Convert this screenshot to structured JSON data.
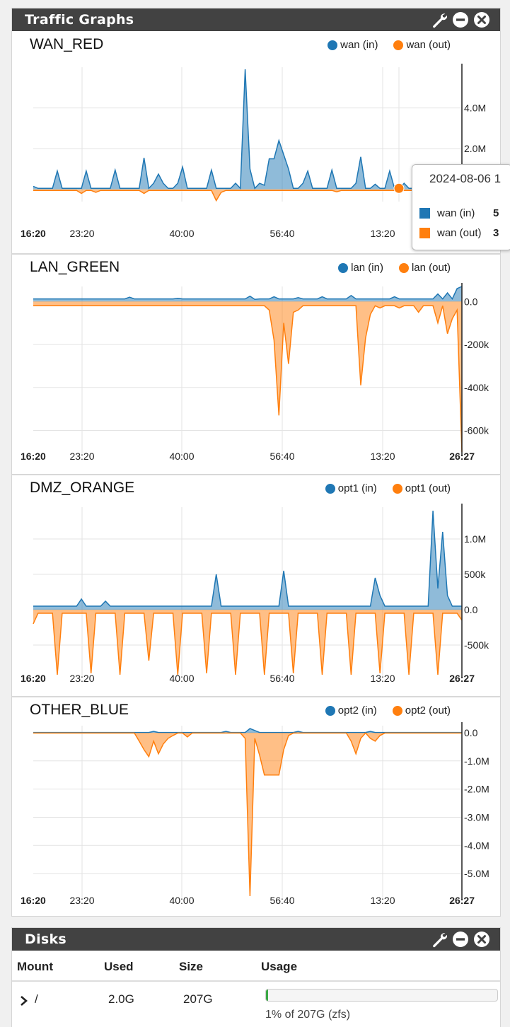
{
  "traffic_panel": {
    "title": "Traffic Graphs",
    "icons": [
      "wrench-icon",
      "minus-circle-icon",
      "close-circle-icon"
    ]
  },
  "colors": {
    "in": "#1f77b4",
    "out": "#ff7f0e",
    "header": "#424242"
  },
  "chart_data": [
    {
      "type": "area",
      "name": "WAN_RED",
      "x_ticks": [
        "16:20",
        "23:20",
        "40:00",
        "56:40",
        "13:20",
        ""
      ],
      "y_ticks": [
        "4.0M",
        "2.0M"
      ],
      "ylim": [
        -0.6,
        6.0
      ],
      "legend": [
        "wan (in)",
        "wan (out)"
      ],
      "series": [
        {
          "name": "wan (in)",
          "values": [
            0.15,
            0.05,
            0.05,
            0.05,
            0.9,
            0.05,
            0.05,
            0.05,
            0.05,
            0.05,
            0.05,
            0.05,
            0.05,
            0.05,
            0.05,
            0.05,
            0.05,
            0.95,
            0.05,
            0.05,
            0.05,
            0.05,
            0.05,
            0.05,
            0.05,
            0.05,
            0.05,
            0.05,
            0.05,
            0.05,
            0.05,
            0.05,
            0.05,
            0.05,
            0.05,
            0.05,
            0.05,
            0.05,
            0.05,
            0.05,
            0.05,
            0.05,
            0.05,
            0.05,
            0.05,
            0.05,
            0.05,
            0.05,
            0.05,
            0.05,
            0.05,
            0.05,
            0.05,
            0.05,
            0.05,
            0.05,
            0.05,
            0.05,
            0.05,
            0.05,
            0.95,
            0.05,
            0.05,
            0.05,
            0.05,
            0.05,
            0.05,
            0.05,
            0.05,
            0.05,
            0.05,
            0.05,
            0.05,
            0.05,
            0.05,
            0.05,
            0.05,
            0.05,
            0.05,
            0.05,
            0.05,
            0.05,
            0.05,
            0.05,
            0.05,
            0.05,
            0.05,
            0.05,
            0.05,
            0.05,
            0.05,
            0.05,
            0.05,
            0.05,
            0.05,
            0.05,
            0.05,
            0.05,
            0.05,
            0.05,
            0.05,
            0.05,
            0.05,
            0.05,
            0.05,
            0.05,
            0.05,
            0.05,
            0.05,
            0.05,
            0.05,
            0.05,
            0.05,
            0.05,
            0.05,
            0.05,
            0.05,
            0.05,
            0.05,
            0.05,
            0.05,
            0.05,
            0.05,
            0.05,
            0.05,
            0.05,
            0.05,
            0.05,
            0.05,
            0.05,
            0.05,
            0.05,
            0.05,
            0.05,
            0.05,
            0.05,
            0.05,
            0.05,
            0.05,
            0.05,
            0.05,
            0.05,
            0.05,
            0.05,
            0.05,
            0.05,
            0.05,
            0.05,
            0.05,
            0.05,
            0.05,
            0.05,
            0.05,
            0.05,
            0.05,
            0.05
          ]
        },
        {
          "name": "wan (out)",
          "values": []
        }
      ]
    },
    {
      "type": "area",
      "name": "LAN_GREEN",
      "x_ticks": [
        "16:20",
        "23:20",
        "40:00",
        "56:40",
        "13:20",
        "26:27"
      ],
      "y_ticks": [
        "0.0",
        "-200k",
        "-400k",
        "-600k"
      ],
      "ylim": [
        -720,
        70
      ],
      "legend": [
        "lan (in)",
        "lan (out)"
      ]
    },
    {
      "type": "area",
      "name": "DMZ_ORANGE",
      "x_ticks": [
        "16:20",
        "23:20",
        "40:00",
        "56:40",
        "13:20",
        "26:27"
      ],
      "y_ticks": [
        "1.0M",
        "500k",
        "0.0",
        "-500k"
      ],
      "ylim": [
        -0.95,
        1.45
      ],
      "legend": [
        "opt1 (in)",
        "opt1 (out)"
      ]
    },
    {
      "type": "area",
      "name": "OTHER_BLUE",
      "x_ticks": [
        "16:20",
        "23:20",
        "40:00",
        "56:40",
        "13:20",
        "26:27"
      ],
      "y_ticks": [
        "0.0",
        "-1.0M",
        "-2.0M",
        "-3.0M",
        "-4.0M",
        "-5.0M"
      ],
      "ylim": [
        -5.9,
        0.25
      ],
      "legend": [
        "opt2 (in)",
        "opt2 (out)"
      ]
    }
  ],
  "tooltip": {
    "date": "2024-08-06 1",
    "rows": [
      {
        "label": "wan (in)",
        "value": "5"
      },
      {
        "label": "wan (out)",
        "value": "3"
      }
    ]
  },
  "disks_panel": {
    "title": "Disks",
    "columns": [
      "Mount",
      "Used",
      "Size",
      "Usage"
    ],
    "rows": [
      {
        "mount": "/",
        "used": "2.0G",
        "size": "207G",
        "usage_percent": 1,
        "usage_text": "1% of 207G (zfs)"
      }
    ]
  }
}
